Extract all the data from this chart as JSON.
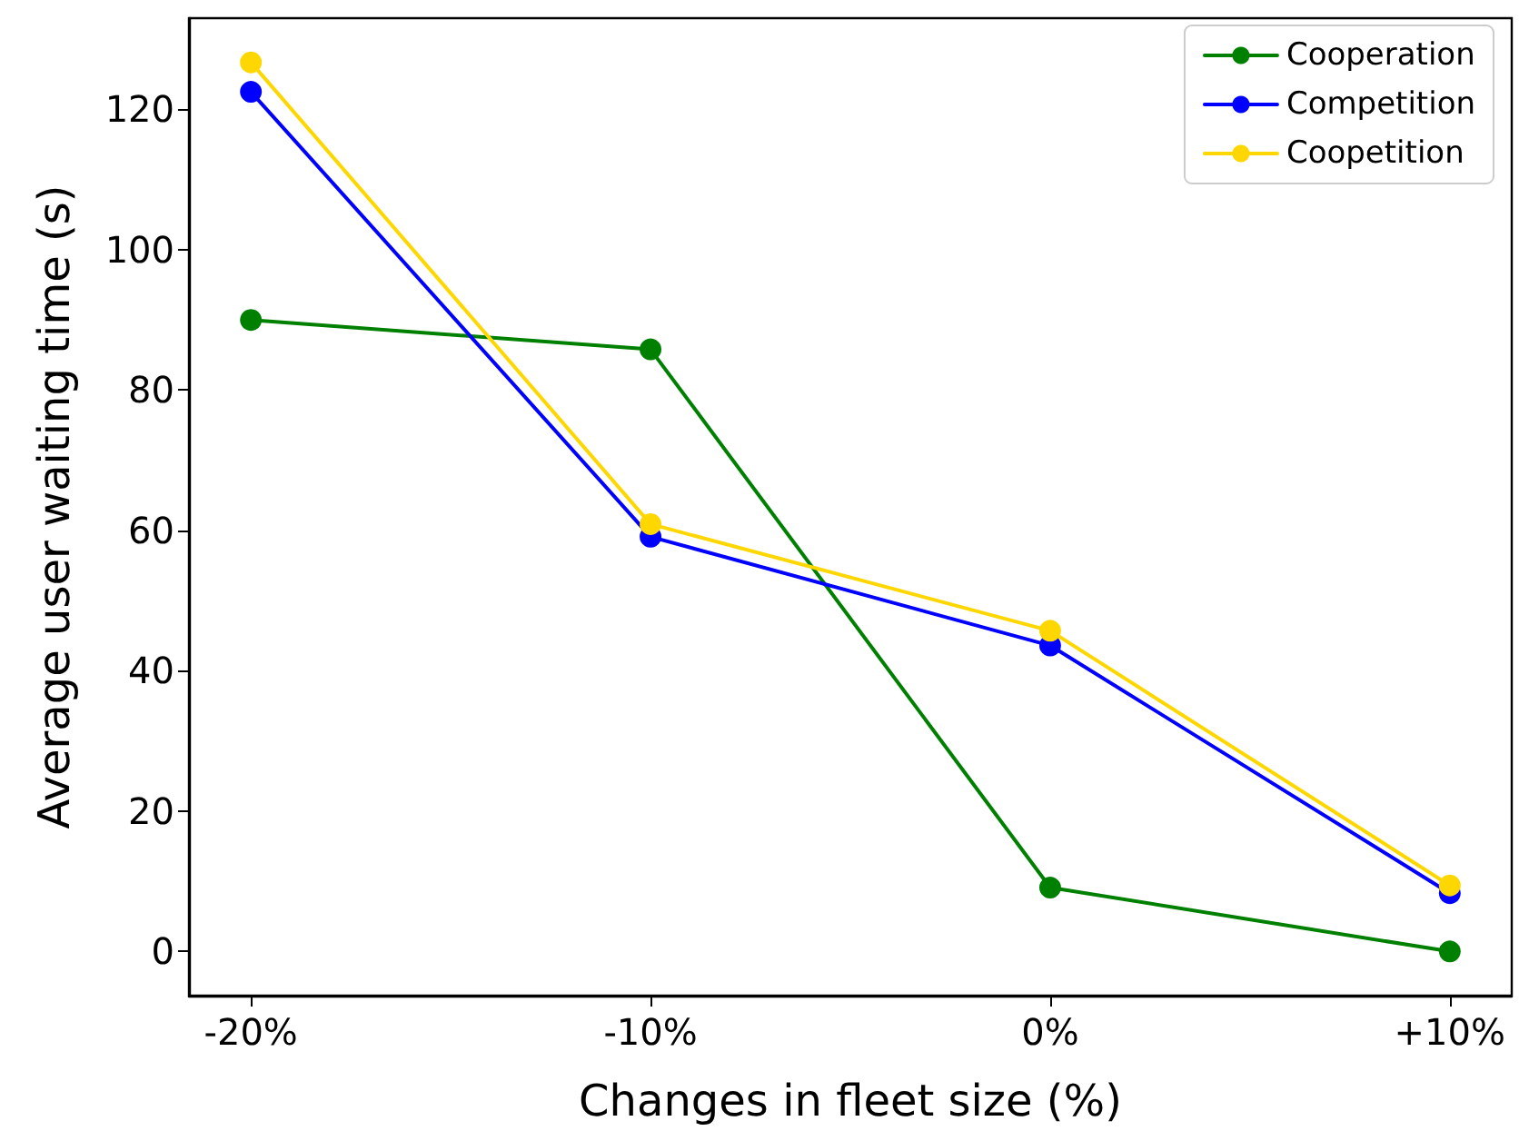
{
  "chart_data": {
    "type": "line",
    "xlabel": "Changes in fleet size (%)",
    "ylabel": "Average user waiting time (s)",
    "categories": [
      "-20%",
      "-10%",
      "0%",
      "+10%"
    ],
    "series": [
      {
        "name": "Cooperation",
        "color": "#008000",
        "values": [
          90,
          85.8,
          9.1,
          0
        ]
      },
      {
        "name": "Competition",
        "color": "#0000ff",
        "values": [
          122.5,
          59.1,
          43.6,
          8.3
        ]
      },
      {
        "name": "Coopetition",
        "color": "#ffd700",
        "values": [
          126.7,
          60.9,
          45.7,
          9.4
        ]
      }
    ],
    "ylim": [
      -6.3,
      133
    ],
    "yticks": [
      0,
      20,
      40,
      60,
      80,
      100,
      120
    ],
    "grid": false,
    "legend": "top right",
    "marker": "circle",
    "line_style": "solid"
  }
}
